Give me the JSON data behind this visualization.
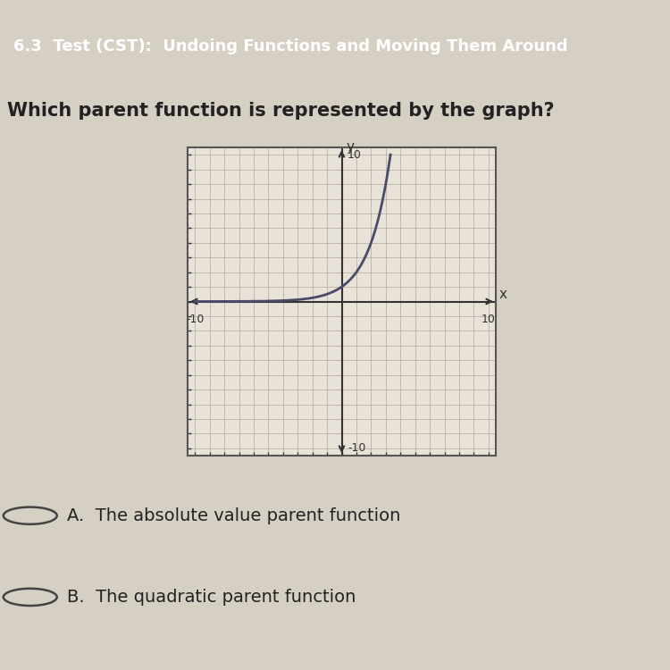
{
  "header_text": "6.3  Test (CST):  Undoing Functions and Moving Them Around",
  "question_text": "Which parent function is represented by the graph?",
  "header_bg": "#2d2d2d",
  "page_bg": "#d6cfc4",
  "graph_bg": "#e8e2d8",
  "graph_border": "#555555",
  "curve_color": "#4a4a6a",
  "axis_color": "#333333",
  "grid_color": "#b0a898",
  "xlim": [
    -10,
    10
  ],
  "ylim": [
    -10,
    10
  ],
  "x_tick_label_left": "-10",
  "x_tick_label_right": "10",
  "y_tick_label_top": "10",
  "y_tick_label_bottom": "-10",
  "x_axis_label": "x",
  "y_axis_label": "y",
  "choices": [
    "A.  The absolute value parent function",
    "B.  The quadratic parent function"
  ],
  "choice_fontsize": 14,
  "question_fontsize": 15,
  "header_fontsize": 13
}
